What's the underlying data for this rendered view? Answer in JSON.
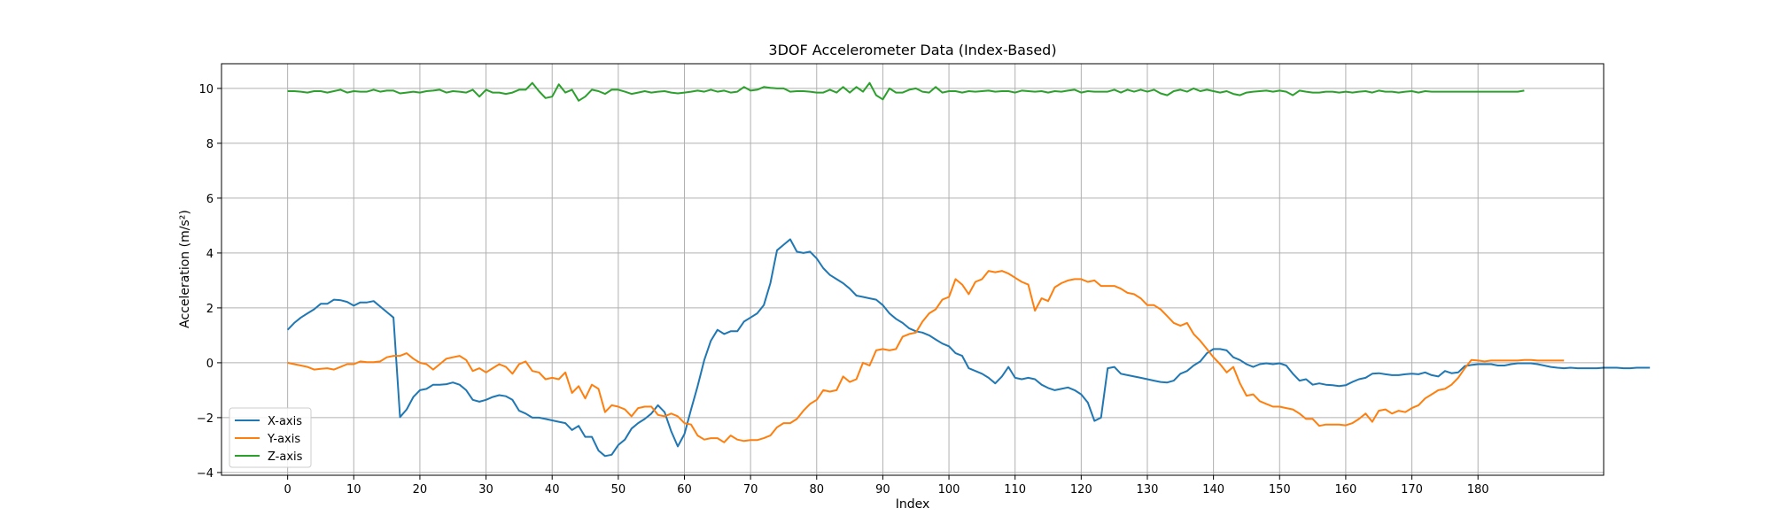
{
  "chart_data": {
    "type": "line",
    "title": "3DOF Accelerometer Data (Index-Based)",
    "xlabel": "Index",
    "ylabel": "Acceleration (m/s²)",
    "xlim": [
      -10,
      199
    ],
    "ylim": [
      -4.1,
      10.9
    ],
    "xticks": [
      0,
      10,
      20,
      30,
      40,
      50,
      60,
      70,
      80,
      90,
      100,
      110,
      120,
      130,
      140,
      150,
      160,
      170,
      180
    ],
    "yticks": [
      -4,
      -2,
      0,
      2,
      4,
      6,
      8,
      10
    ],
    "grid": true,
    "legend_position": "lower-left",
    "series": [
      {
        "name": "X-axis",
        "color": "#1f77b4",
        "values": [
          1.2,
          1.45,
          1.65,
          1.8,
          1.95,
          2.15,
          2.15,
          2.3,
          2.28,
          2.22,
          2.08,
          2.2,
          2.2,
          2.25,
          2.05,
          1.85,
          1.65,
          -1.98,
          -1.7,
          -1.25,
          -1.0,
          -0.95,
          -0.8,
          -0.8,
          -0.78,
          -0.72,
          -0.8,
          -1.0,
          -1.35,
          -1.42,
          -1.35,
          -1.25,
          -1.18,
          -1.22,
          -1.35,
          -1.75,
          -1.85,
          -2.0,
          -2.0,
          -2.05,
          -2.1,
          -2.15,
          -2.2,
          -2.45,
          -2.3,
          -2.7,
          -2.7,
          -3.2,
          -3.4,
          -3.35,
          -3.0,
          -2.8,
          -2.4,
          -2.2,
          -2.05,
          -1.85,
          -1.55,
          -1.8,
          -2.5,
          -3.05,
          -2.6,
          -1.7,
          -0.85,
          0.1,
          0.8,
          1.2,
          1.05,
          1.15,
          1.15,
          1.5,
          1.65,
          1.8,
          2.1,
          2.9,
          4.1,
          4.3,
          4.5,
          4.05,
          4.0,
          4.05,
          3.8,
          3.45,
          3.2,
          3.05,
          2.9,
          2.7,
          2.45,
          2.4,
          2.35,
          2.3,
          2.1,
          1.8,
          1.6,
          1.45,
          1.25,
          1.15,
          1.1,
          1.0,
          0.85,
          0.7,
          0.6,
          0.35,
          0.25,
          -0.2,
          -0.3,
          -0.4,
          -0.55,
          -0.75,
          -0.5,
          -0.15,
          -0.55,
          -0.6,
          -0.55,
          -0.6,
          -0.8,
          -0.92,
          -1.0,
          -0.95,
          -0.9,
          -1.0,
          -1.15,
          -1.45,
          -2.12,
          -2.0,
          -0.2,
          -0.15,
          -0.4,
          -0.45,
          -0.5,
          -0.55,
          -0.6,
          -0.65,
          -0.7,
          -0.72,
          -0.65,
          -0.4,
          -0.3,
          -0.1,
          0.05,
          0.35,
          0.5,
          0.5,
          0.45,
          0.2,
          0.1,
          -0.05,
          -0.15,
          -0.05,
          -0.02,
          -0.05,
          -0.02,
          -0.1,
          -0.4,
          -0.65,
          -0.6,
          -0.8,
          -0.75,
          -0.8,
          -0.82,
          -0.85,
          -0.82,
          -0.7,
          -0.6,
          -0.55,
          -0.4,
          -0.38,
          -0.42,
          -0.45,
          -0.45,
          -0.42,
          -0.4,
          -0.42,
          -0.35,
          -0.45,
          -0.5,
          -0.3,
          -0.38,
          -0.35,
          -0.12,
          -0.08,
          -0.05,
          -0.05,
          -0.05,
          -0.1,
          -0.1,
          -0.05,
          -0.02,
          -0.02,
          -0.02,
          -0.05,
          -0.1,
          -0.15,
          -0.18,
          -0.2,
          -0.18,
          -0.2,
          -0.2,
          -0.2,
          -0.2,
          -0.18,
          -0.18,
          -0.18,
          -0.2,
          -0.2,
          -0.18,
          -0.18,
          -0.18
        ]
      },
      {
        "name": "Y-axis",
        "color": "#ff7f0e",
        "values": [
          0.0,
          -0.05,
          -0.1,
          -0.15,
          -0.25,
          -0.22,
          -0.2,
          -0.25,
          -0.15,
          -0.05,
          -0.05,
          0.05,
          0.02,
          0.02,
          0.05,
          0.2,
          0.25,
          0.25,
          0.35,
          0.15,
          0.0,
          -0.05,
          -0.25,
          -0.05,
          0.15,
          0.2,
          0.25,
          0.1,
          -0.3,
          -0.2,
          -0.35,
          -0.2,
          -0.05,
          -0.15,
          -0.4,
          -0.05,
          0.05,
          -0.3,
          -0.35,
          -0.6,
          -0.55,
          -0.6,
          -0.35,
          -1.1,
          -0.85,
          -1.3,
          -0.8,
          -0.95,
          -1.8,
          -1.55,
          -1.6,
          -1.7,
          -1.95,
          -1.65,
          -1.6,
          -1.6,
          -1.9,
          -1.95,
          -1.85,
          -1.95,
          -2.2,
          -2.25,
          -2.65,
          -2.8,
          -2.75,
          -2.75,
          -2.9,
          -2.65,
          -2.8,
          -2.85,
          -2.82,
          -2.82,
          -2.75,
          -2.65,
          -2.35,
          -2.2,
          -2.2,
          -2.05,
          -1.75,
          -1.5,
          -1.35,
          -1.0,
          -1.05,
          -1.0,
          -0.5,
          -0.7,
          -0.6,
          0.0,
          -0.1,
          0.45,
          0.5,
          0.45,
          0.5,
          0.95,
          1.05,
          1.1,
          1.5,
          1.8,
          1.95,
          2.3,
          2.4,
          3.05,
          2.85,
          2.5,
          2.95,
          3.05,
          3.35,
          3.3,
          3.35,
          3.25,
          3.1,
          2.95,
          2.85,
          1.9,
          2.35,
          2.25,
          2.75,
          2.9,
          3.0,
          3.05,
          3.05,
          2.95,
          3.0,
          2.8,
          2.8,
          2.8,
          2.7,
          2.55,
          2.5,
          2.35,
          2.1,
          2.1,
          1.95,
          1.7,
          1.45,
          1.35,
          1.45,
          1.05,
          0.8,
          0.5,
          0.2,
          -0.05,
          -0.35,
          -0.15,
          -0.75,
          -1.2,
          -1.15,
          -1.4,
          -1.5,
          -1.6,
          -1.6,
          -1.65,
          -1.7,
          -1.85,
          -2.05,
          -2.05,
          -2.3,
          -2.25,
          -2.25,
          -2.25,
          -2.28,
          -2.2,
          -2.05,
          -1.85,
          -2.15,
          -1.75,
          -1.7,
          -1.85,
          -1.75,
          -1.8,
          -1.65,
          -1.55,
          -1.3,
          -1.15,
          -1.0,
          -0.95,
          -0.8,
          -0.55,
          -0.2,
          0.1,
          0.08,
          0.05,
          0.08,
          0.08,
          0.08,
          0.08,
          0.08,
          0.1,
          0.1,
          0.08,
          0.08,
          0.08,
          0.08,
          0.08
        ]
      },
      {
        "name": "Z-axis",
        "color": "#2ca02c",
        "values": [
          9.9,
          9.9,
          9.88,
          9.85,
          9.9,
          9.9,
          9.85,
          9.9,
          9.95,
          9.85,
          9.9,
          9.88,
          9.88,
          9.95,
          9.88,
          9.92,
          9.92,
          9.82,
          9.85,
          9.88,
          9.85,
          9.9,
          9.92,
          9.95,
          9.85,
          9.9,
          9.88,
          9.85,
          9.95,
          9.7,
          9.95,
          9.85,
          9.85,
          9.8,
          9.85,
          9.95,
          9.95,
          10.2,
          9.9,
          9.65,
          9.7,
          10.15,
          9.85,
          9.95,
          9.55,
          9.7,
          9.95,
          9.9,
          9.8,
          9.95,
          9.95,
          9.88,
          9.8,
          9.85,
          9.9,
          9.85,
          9.88,
          9.9,
          9.85,
          9.82,
          9.85,
          9.88,
          9.92,
          9.88,
          9.95,
          9.88,
          9.92,
          9.85,
          9.88,
          10.05,
          9.92,
          9.95,
          10.05,
          10.02,
          10.0,
          10.0,
          9.88,
          9.9,
          9.9,
          9.88,
          9.85,
          9.85,
          9.95,
          9.85,
          10.05,
          9.85,
          10.05,
          9.88,
          10.2,
          9.75,
          9.6,
          10.0,
          9.85,
          9.85,
          9.95,
          10.0,
          9.88,
          9.85,
          10.05,
          9.85,
          9.9,
          9.9,
          9.85,
          9.9,
          9.88,
          9.9,
          9.92,
          9.88,
          9.9,
          9.9,
          9.85,
          9.92,
          9.9,
          9.88,
          9.9,
          9.85,
          9.9,
          9.88,
          9.92,
          9.95,
          9.85,
          9.9,
          9.88,
          9.88,
          9.88,
          9.95,
          9.85,
          9.95,
          9.88,
          9.95,
          9.88,
          9.95,
          9.82,
          9.75,
          9.9,
          9.95,
          9.88,
          10.0,
          9.9,
          9.95,
          9.9,
          9.85,
          9.9,
          9.8,
          9.75,
          9.85,
          9.88,
          9.9,
          9.92,
          9.88,
          9.92,
          9.88,
          9.75,
          9.92,
          9.88,
          9.85,
          9.85,
          9.88,
          9.88,
          9.85,
          9.88,
          9.85,
          9.88,
          9.9,
          9.85,
          9.92,
          9.88,
          9.88,
          9.85,
          9.88,
          9.9,
          9.85,
          9.9,
          9.88,
          9.88,
          9.88,
          9.88,
          9.88,
          9.88,
          9.88,
          9.88,
          9.88,
          9.88,
          9.88,
          9.88,
          9.88,
          9.88,
          9.92
        ]
      }
    ]
  }
}
